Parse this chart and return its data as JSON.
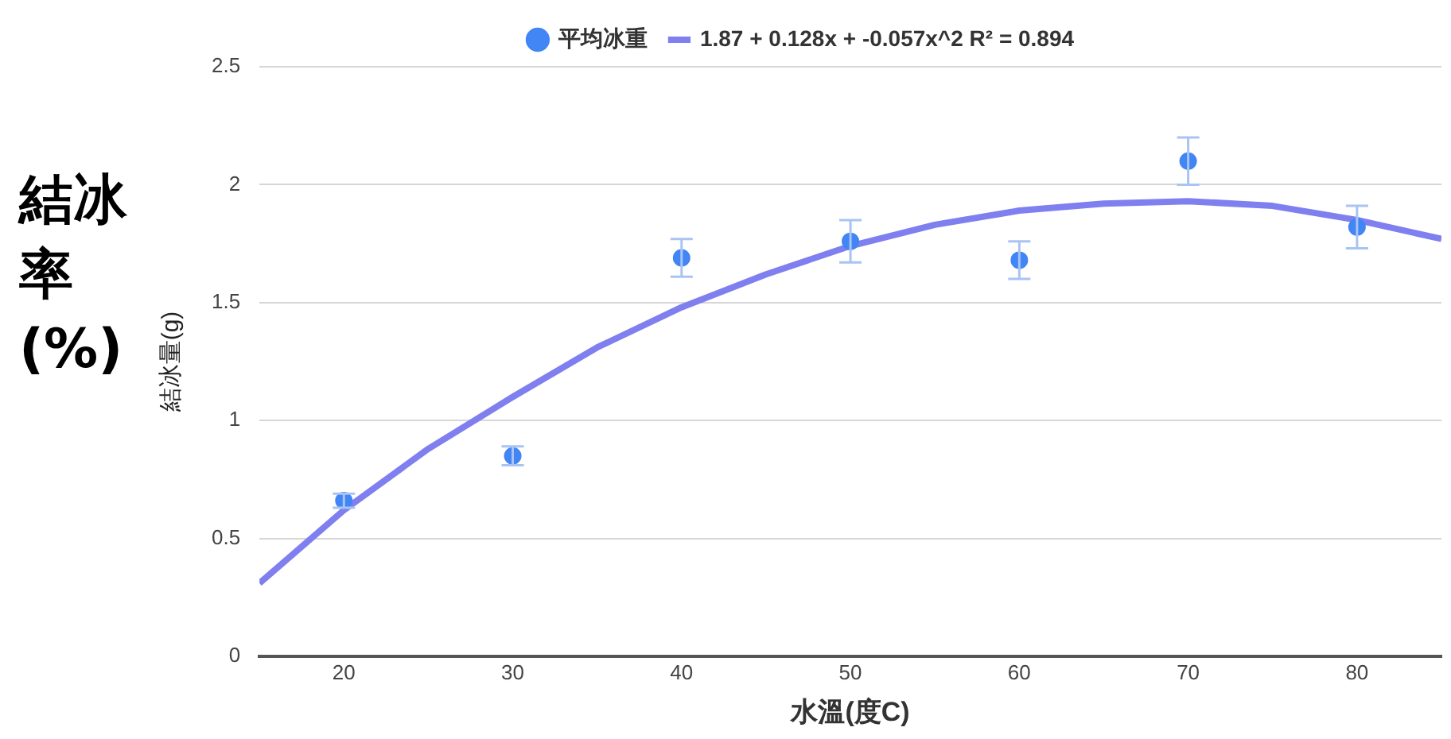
{
  "chart_data": {
    "type": "scatter",
    "xlabel": "水溫(度C)",
    "ylabel": "結冰量(g)",
    "annotations": [
      "結冰率 (%)"
    ],
    "xlim": [
      15,
      85
    ],
    "xticks": [
      20,
      30,
      40,
      50,
      60,
      70,
      80
    ],
    "ylim": [
      0,
      2.5
    ],
    "yticks": [
      0,
      0.5,
      1,
      1.5,
      2,
      2.5
    ],
    "grid": "y",
    "legend": "top",
    "marker": "circle",
    "series": [
      {
        "name": "平均冰重",
        "color": "#4285f4",
        "x": [
          20,
          30,
          40,
          50,
          60,
          70,
          80
        ],
        "values": [
          0.66,
          0.85,
          1.69,
          1.76,
          1.68,
          2.1,
          1.82
        ],
        "errors": [
          0.03,
          0.04,
          0.08,
          0.09,
          0.08,
          0.1,
          0.09
        ]
      },
      {
        "name": "1.87 + 0.128x + -0.057x^2 R² = 0.894",
        "type": "line",
        "color": "#7f7ff0",
        "marker": "none",
        "x": [
          15,
          20,
          25,
          30,
          35,
          40,
          45,
          50,
          55,
          60,
          65,
          70,
          75,
          80,
          85
        ],
        "values": [
          0.31,
          0.62,
          0.88,
          1.1,
          1.31,
          1.48,
          1.62,
          1.74,
          1.83,
          1.89,
          1.92,
          1.93,
          1.91,
          1.85,
          1.77
        ]
      }
    ]
  }
}
